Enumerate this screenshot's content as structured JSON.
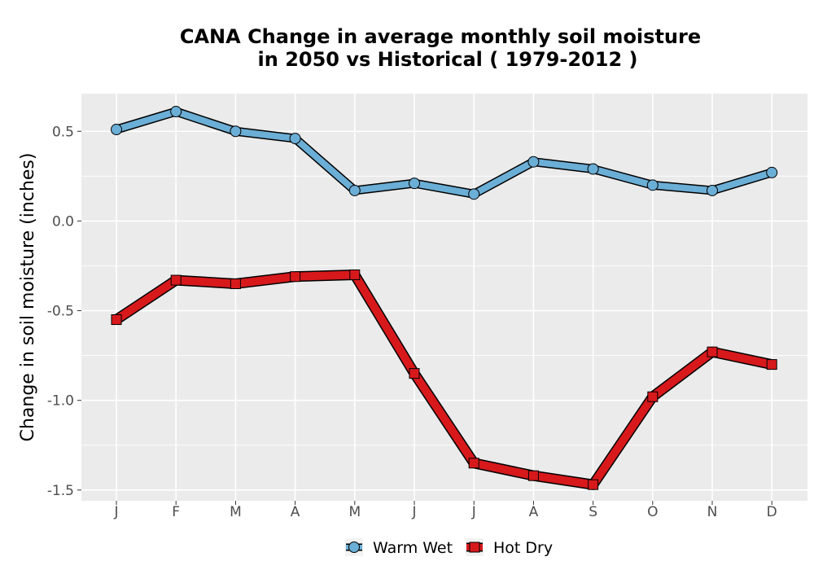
{
  "chart_data": {
    "type": "line",
    "title_line1": "CANA  Change in average monthly soil moisture",
    "title_line2": "in 2050 vs Historical ( 1979-2012 )",
    "xlabel": "",
    "ylabel": "Change in soil moisture (inches)",
    "categories": [
      "J",
      "F",
      "M",
      "A",
      "M",
      "J",
      "J",
      "A",
      "S",
      "O",
      "N",
      "D"
    ],
    "ylim": [
      -1.56,
      0.71
    ],
    "yticks": [
      -1.5,
      -1.0,
      -0.5,
      0.0,
      0.5
    ],
    "ytick_labels": [
      "-1.5",
      "-1.0",
      "-0.5",
      "0.0",
      "0.5"
    ],
    "grid": true,
    "legend_position": "bottom",
    "series": [
      {
        "name": "Warm Wet",
        "color": "#6baed6",
        "marker": "circle",
        "values": [
          0.51,
          0.61,
          0.5,
          0.46,
          0.17,
          0.21,
          0.15,
          0.33,
          0.29,
          0.2,
          0.17,
          0.27
        ]
      },
      {
        "name": "Hot Dry",
        "color": "#d7191c",
        "marker": "square",
        "values": [
          -0.55,
          -0.33,
          -0.35,
          -0.31,
          -0.3,
          -0.85,
          -1.35,
          -1.42,
          -1.47,
          -0.98,
          -0.73,
          -0.8
        ]
      }
    ]
  }
}
